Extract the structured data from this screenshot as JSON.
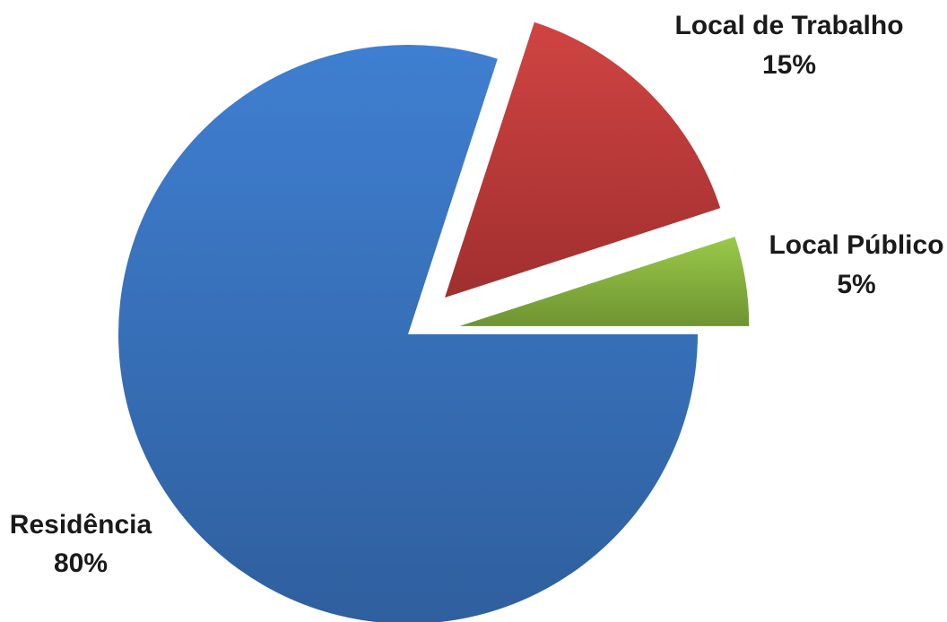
{
  "chart_data": {
    "type": "pie",
    "title": "",
    "slices": [
      {
        "label": "Residência",
        "value": 80,
        "value_label": "80%",
        "color": "#3a73c1",
        "color_light": "#3f7fd1",
        "color_dark": "#2f5f9e",
        "exploded": false
      },
      {
        "label": "Local de Trabalho",
        "value": 15,
        "value_label": "15%",
        "color": "#c0393a",
        "color_light": "#d04443",
        "color_dark": "#a02f2e",
        "exploded": true
      },
      {
        "label": "Local Público",
        "value": 5,
        "value_label": "5%",
        "color": "#89b440",
        "color_light": "#9ac94a",
        "color_dark": "#6e9432",
        "exploded": true
      }
    ],
    "start_angle_deg": 0,
    "direction": "counterclockwise-from-3-oclock",
    "legend": "none",
    "data_labels": "outside"
  }
}
